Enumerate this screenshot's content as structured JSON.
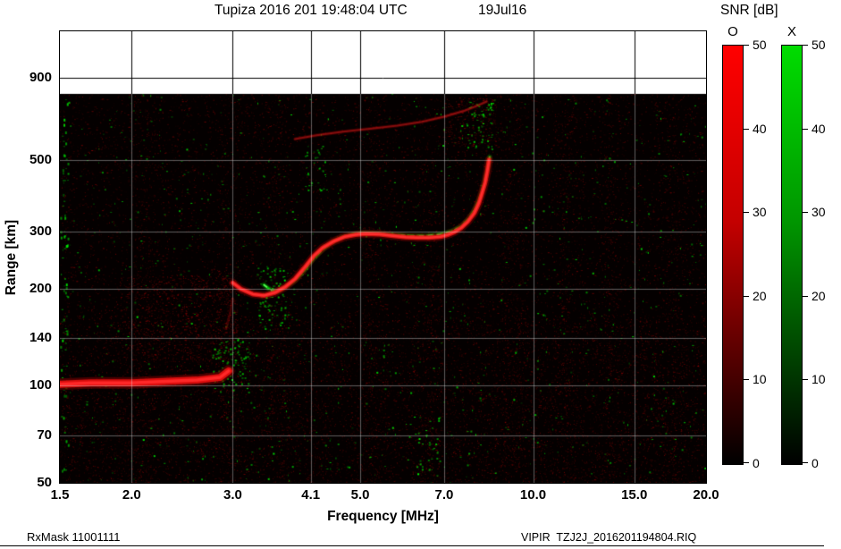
{
  "header": {
    "title": "Tupiza 2016 201 19:48:04 UTC",
    "date": "19Jul16",
    "snr_label": "SNR [dB]"
  },
  "axes": {
    "x_title": "Frequency [MHz]",
    "y_title": "Range [km]"
  },
  "footer": {
    "rx_mask": "RxMask 11001111",
    "file_id": "VIPIR  TZJ2J_2016201194804.RIQ"
  },
  "colorbars": {
    "o": {
      "label": "O",
      "color": "#ff0000",
      "mid_color": "#c40000",
      "tick_values": [
        50,
        40,
        30,
        20,
        10,
        0
      ],
      "tick_labels": [
        "50",
        "40",
        "30",
        "20",
        "10",
        "0"
      ]
    },
    "x": {
      "label": "X",
      "color": "#00dc00",
      "mid_color": "#009600",
      "tick_values": [
        50,
        40,
        30,
        20,
        10,
        0
      ],
      "tick_labels": [
        "50",
        "40",
        "30",
        "20",
        "10",
        "0"
      ]
    }
  },
  "chart_data": {
    "type": "heatmap",
    "title": "Tupiza ionogram, 2016 day 201, 19:48:04 UTC (19Jul16)",
    "xlabel": "Frequency [MHz]",
    "ylabel": "Range [km]",
    "x_scale": "log",
    "y_scale": "log",
    "xlim": [
      1.5,
      20.0
    ],
    "ylim": [
      50,
      1250
    ],
    "x_tick_values": [
      1.5,
      2.0,
      3.0,
      4.1,
      5.0,
      7.0,
      10.0,
      15.0,
      20.0
    ],
    "x_tick_labels": [
      "1.5",
      "2.0",
      "3.0",
      "4.1",
      "5.0",
      "7.0",
      "10.0",
      "15.0",
      "20.0"
    ],
    "y_tick_values": [
      900,
      500,
      300,
      200,
      140,
      100,
      70,
      50
    ],
    "y_tick_labels": [
      "900",
      "500",
      "300",
      "200",
      "140",
      "100",
      "70",
      "50"
    ],
    "x_gridlines": [
      2.0,
      3.0,
      4.1,
      5.0,
      7.0,
      10.0,
      15.0
    ],
    "y_gridlines": [
      70,
      100,
      140,
      200,
      300,
      500,
      900
    ],
    "colorbar": {
      "label": "SNR [dB]",
      "min": 0,
      "max": 50
    },
    "background_color": "#040000",
    "o_mode_color": "#ff2020",
    "x_mode_color": "#00dc00",
    "data_top_km": 800,
    "noise_seed": 1234567,
    "noise_bands_mhz": [
      2.1,
      2.95,
      3.6,
      5.25,
      6.55,
      9.2,
      11.5,
      13.6,
      17.5
    ],
    "o_noise_clusters": [
      [
        1.9,
        3.05,
        120,
        220,
        900
      ],
      [
        7.0,
        8.6,
        550,
        780,
        250
      ]
    ],
    "x_noise_clusters": [
      [
        2.75,
        3.2,
        95,
        140,
        90
      ],
      [
        3.3,
        3.75,
        150,
        235,
        80
      ],
      [
        4.0,
        4.35,
        400,
        560,
        30
      ],
      [
        7.6,
        8.55,
        540,
        760,
        60
      ],
      [
        6.0,
        6.9,
        52,
        80,
        30
      ]
    ],
    "traces": {
      "e_layer_o": [
        [
          1.5,
          101
        ],
        [
          1.7,
          102
        ],
        [
          2.0,
          102
        ],
        [
          2.3,
          103
        ],
        [
          2.6,
          104
        ],
        [
          2.85,
          106
        ],
        [
          2.95,
          111
        ]
      ],
      "cusp_tail_o": [
        [
          2.92,
          150
        ],
        [
          2.97,
          168
        ],
        [
          3.0,
          186
        ]
      ],
      "f_layer_o": [
        [
          3.0,
          208
        ],
        [
          3.1,
          199
        ],
        [
          3.25,
          192
        ],
        [
          3.4,
          190
        ],
        [
          3.55,
          194
        ],
        [
          3.7,
          202
        ],
        [
          3.85,
          214
        ],
        [
          4.0,
          232
        ],
        [
          4.15,
          252
        ],
        [
          4.3,
          267
        ],
        [
          4.5,
          280
        ],
        [
          4.7,
          289
        ],
        [
          4.9,
          293
        ],
        [
          5.1,
          295
        ],
        [
          5.4,
          294
        ],
        [
          5.7,
          291
        ],
        [
          6.0,
          288
        ],
        [
          6.3,
          287
        ],
        [
          6.6,
          287
        ],
        [
          6.9,
          289
        ],
        [
          7.1,
          293
        ],
        [
          7.3,
          299
        ],
        [
          7.5,
          308
        ],
        [
          7.7,
          322
        ],
        [
          7.9,
          342
        ],
        [
          8.05,
          368
        ],
        [
          8.15,
          395
        ],
        [
          8.25,
          425
        ],
        [
          8.32,
          460
        ],
        [
          8.38,
          500
        ]
      ],
      "f_layer_x": [
        [
          3.4,
          205
        ],
        [
          3.5,
          197
        ],
        [
          3.6,
          196
        ],
        [
          3.7,
          202
        ],
        [
          3.85,
          212
        ],
        [
          4.0,
          228
        ],
        [
          4.15,
          248
        ],
        [
          4.3,
          264
        ],
        [
          4.45,
          277
        ],
        [
          4.65,
          288
        ],
        [
          4.85,
          294
        ],
        [
          5.05,
          297
        ],
        [
          5.35,
          296
        ],
        [
          5.7,
          293
        ],
        [
          6.1,
          291
        ],
        [
          6.5,
          291
        ],
        [
          6.9,
          294
        ],
        [
          7.2,
          300
        ],
        [
          7.5,
          311
        ],
        [
          7.75,
          330
        ],
        [
          7.95,
          356
        ],
        [
          8.1,
          386
        ],
        [
          8.22,
          420
        ],
        [
          8.32,
          462
        ],
        [
          8.4,
          510
        ]
      ],
      "second_hop_o": [
        [
          3.85,
          580
        ],
        [
          4.2,
          596
        ],
        [
          4.7,
          612
        ],
        [
          5.2,
          624
        ],
        [
          5.8,
          638
        ],
        [
          6.4,
          656
        ],
        [
          7.0,
          680
        ],
        [
          7.6,
          710
        ],
        [
          8.0,
          736
        ],
        [
          8.3,
          758
        ]
      ]
    }
  }
}
